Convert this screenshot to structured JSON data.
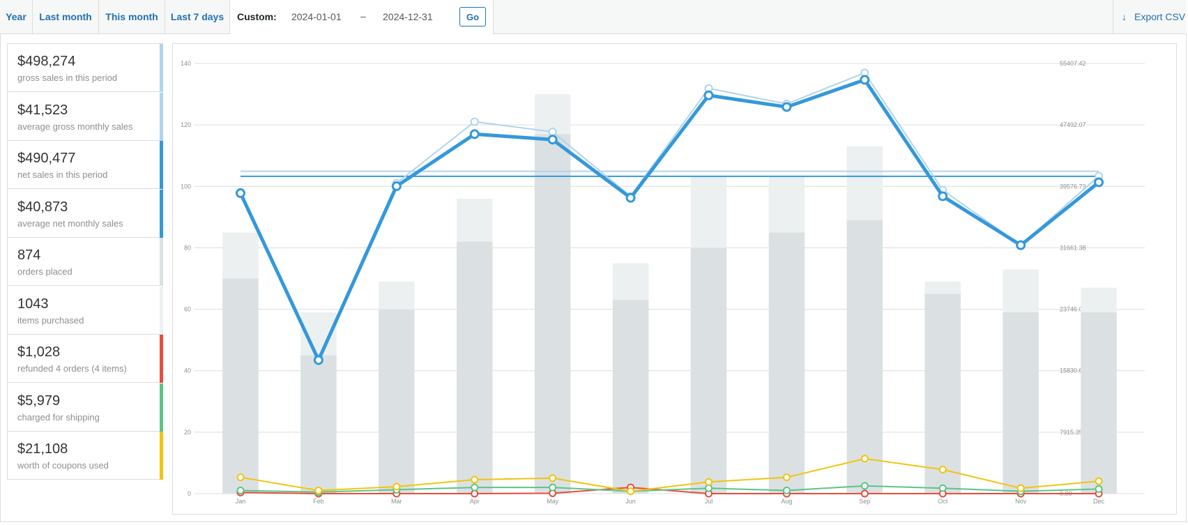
{
  "range_tabs": [
    {
      "label": "Year"
    },
    {
      "label": "Last month"
    },
    {
      "label": "This month"
    },
    {
      "label": "Last 7 days"
    }
  ],
  "custom": {
    "label": "Custom:",
    "start_value": "2024-01-01",
    "separator": "–",
    "end_value": "2024-12-31",
    "go_label": "Go"
  },
  "export": {
    "label": "Export CSV",
    "icon": "download-arrow-icon"
  },
  "legend": [
    {
      "amount": "$498,274",
      "description": "gross sales in this period",
      "color": "#b1d4ea"
    },
    {
      "amount": "$41,523",
      "description": "average gross monthly sales",
      "color": "#b1d4ea"
    },
    {
      "amount": "$490,477",
      "description": "net sales in this period",
      "color": "#3498db"
    },
    {
      "amount": "$40,873",
      "description": "average net monthly sales",
      "color": "#3498db"
    },
    {
      "amount": "874",
      "description": "orders placed",
      "color": "#dbe1e3"
    },
    {
      "amount": "1043",
      "description": "items purchased",
      "color": "#ecf0f1"
    },
    {
      "amount": "$1,028",
      "description": "refunded 4 orders (4 items)",
      "color": "#e74c3c"
    },
    {
      "amount": "$5,979",
      "description": "charged for shipping",
      "color": "#5cc488"
    },
    {
      "amount": "$21,108",
      "description": "worth of coupons used",
      "color": "#f1c40f"
    }
  ],
  "chart_data": {
    "type": "bar",
    "categories": [
      "Jan",
      "Feb",
      "Mar",
      "Apr",
      "May",
      "Jun",
      "Jul",
      "Aug",
      "Sep",
      "Oct",
      "Nov",
      "Dec"
    ],
    "y_left": {
      "ticks": [
        "0",
        "20",
        "40",
        "60",
        "80",
        "100",
        "120",
        "140"
      ],
      "range": [
        0,
        140
      ]
    },
    "y_right": {
      "ticks": [
        "0.00",
        "7915.35",
        "15830.69",
        "23746.04",
        "31661.38",
        "39576.73",
        "47492.07",
        "55407.42"
      ],
      "range": [
        0,
        55407.42
      ]
    },
    "grid": true,
    "bars": {
      "items_purchased": [
        85,
        59,
        69,
        96,
        130,
        75,
        103,
        103,
        113,
        69,
        73,
        67
      ],
      "orders_placed": [
        70,
        45,
        60,
        82,
        117,
        63,
        80,
        85,
        89,
        65,
        59,
        59
      ]
    },
    "lines": {
      "gross_sales": [
        38800,
        17500,
        40000,
        47900,
        46600,
        38300,
        52200,
        50200,
        54200,
        39100,
        32000,
        40900
      ],
      "net_sales": [
        38700,
        17200,
        39600,
        46300,
        45600,
        38100,
        51300,
        49800,
        53300,
        38300,
        32000,
        40100
      ],
      "average_gross_monthly": 41523,
      "average_net_monthly": 40873,
      "shipping": [
        400,
        200,
        500,
        800,
        800,
        300,
        700,
        400,
        1000,
        700,
        300,
        600
      ],
      "coupons": [
        2100,
        400,
        900,
        1800,
        2000,
        300,
        1500,
        2100,
        4500,
        3100,
        700,
        1600
      ],
      "refunds": [
        150,
        0,
        0,
        0,
        50,
        800,
        0,
        0,
        0,
        0,
        0,
        0
      ]
    },
    "colors": {
      "items_purchased": "#ecf0f1",
      "orders_placed": "#dbe1e3",
      "gross_sales": "#b1d4ea",
      "net_sales": "#3498db",
      "average_gross": "#b1d4ea",
      "average_net": "#3498db",
      "shipping": "#5cc488",
      "coupons": "#f1c40f",
      "refunds": "#e74c3c"
    }
  }
}
